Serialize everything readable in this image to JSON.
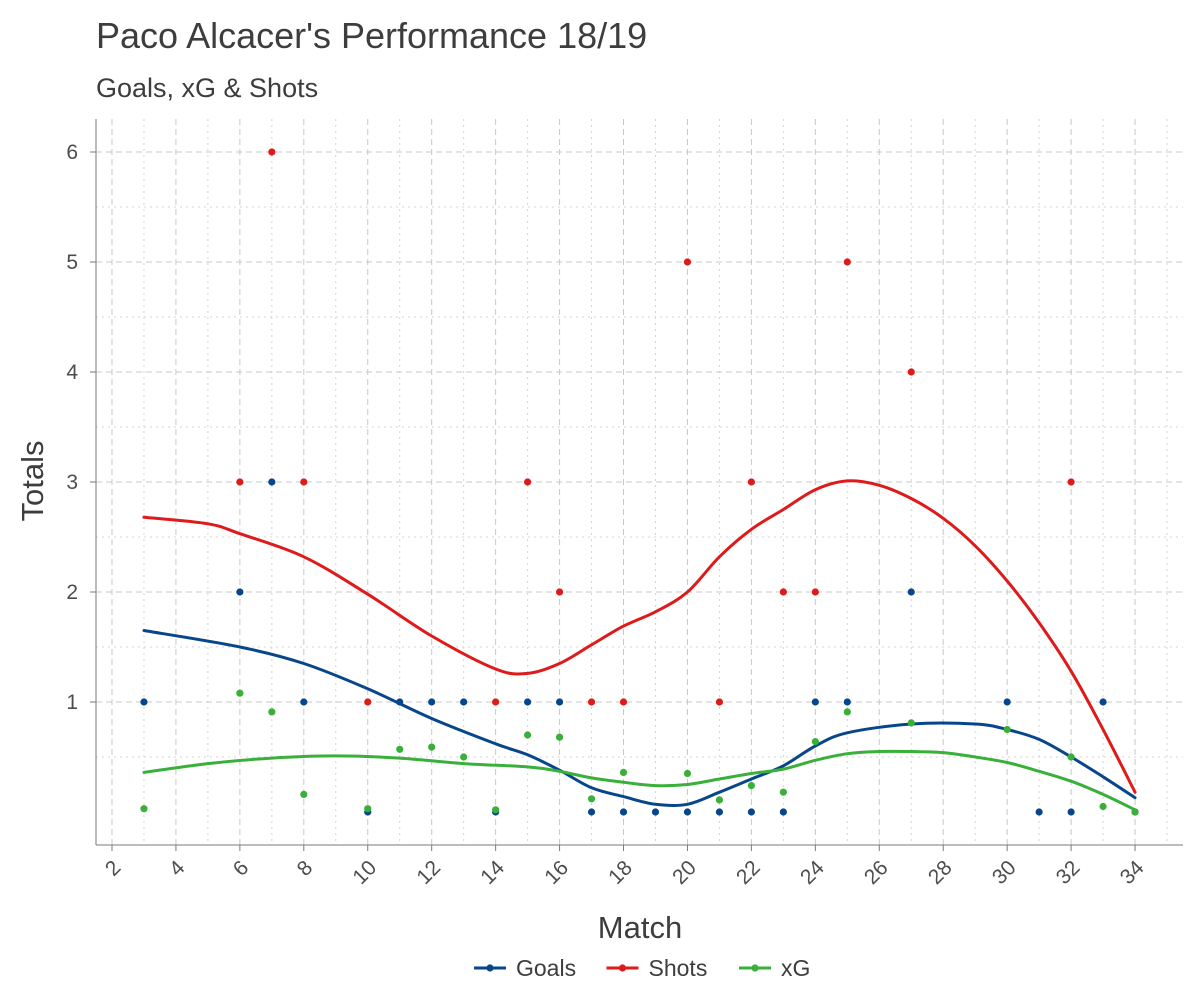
{
  "chart_data": {
    "type": "scatter",
    "title": "Paco Alcacer's Performance 18/19",
    "subtitle": "Goals, xG & Shots",
    "xlabel": "Match",
    "ylabel": "Totals",
    "xlim": [
      1.5,
      35.5
    ],
    "ylim": [
      -0.3,
      6.3
    ],
    "x_ticks": [
      2,
      4,
      6,
      8,
      10,
      12,
      14,
      16,
      18,
      20,
      22,
      24,
      26,
      28,
      30,
      32,
      34
    ],
    "x_tick_labels": [
      "2",
      "4",
      "6",
      "8",
      "10",
      "12",
      "14",
      "16",
      "18",
      "20",
      "22",
      "24",
      "26",
      "28",
      "30",
      "32",
      "34"
    ],
    "y_ticks": [
      1,
      2,
      3,
      4,
      5,
      6
    ],
    "y_tick_labels": [
      "1",
      "2",
      "3",
      "4",
      "5",
      "6"
    ],
    "grid": true,
    "legend_position": "bottom",
    "series": [
      {
        "name": "Goals",
        "color": "#08468b",
        "points": [
          [
            3,
            1
          ],
          [
            6,
            2
          ],
          [
            7,
            3
          ],
          [
            8,
            1
          ],
          [
            10,
            0
          ],
          [
            11,
            1
          ],
          [
            12,
            1
          ],
          [
            13,
            1
          ],
          [
            14,
            0
          ],
          [
            15,
            1
          ],
          [
            16,
            1
          ],
          [
            17,
            0
          ],
          [
            18,
            0
          ],
          [
            19,
            0
          ],
          [
            20,
            0
          ],
          [
            21,
            0
          ],
          [
            22,
            0
          ],
          [
            23,
            0
          ],
          [
            24,
            1
          ],
          [
            25,
            1
          ],
          [
            27,
            2
          ],
          [
            30,
            1
          ],
          [
            31,
            0
          ],
          [
            32,
            0
          ],
          [
            33,
            1
          ],
          [
            34,
            0
          ]
        ],
        "smooth": [
          [
            3,
            1.65
          ],
          [
            6,
            1.5
          ],
          [
            8,
            1.35
          ],
          [
            10,
            1.12
          ],
          [
            12,
            0.85
          ],
          [
            14,
            0.62
          ],
          [
            15,
            0.52
          ],
          [
            16,
            0.38
          ],
          [
            17,
            0.22
          ],
          [
            18,
            0.14
          ],
          [
            19,
            0.07
          ],
          [
            20,
            0.07
          ],
          [
            21,
            0.18
          ],
          [
            22,
            0.3
          ],
          [
            23,
            0.42
          ],
          [
            24,
            0.6
          ],
          [
            25,
            0.72
          ],
          [
            27,
            0.8
          ],
          [
            29,
            0.8
          ],
          [
            30,
            0.75
          ],
          [
            31,
            0.66
          ],
          [
            32,
            0.5
          ],
          [
            33,
            0.32
          ],
          [
            34,
            0.13
          ]
        ]
      },
      {
        "name": "Shots",
        "color": "#de1a1a",
        "points": [
          [
            6,
            3
          ],
          [
            7,
            6
          ],
          [
            8,
            3
          ],
          [
            10,
            1
          ],
          [
            14,
            1
          ],
          [
            15,
            3
          ],
          [
            16,
            2
          ],
          [
            17,
            1
          ],
          [
            18,
            1
          ],
          [
            20,
            5
          ],
          [
            21,
            1
          ],
          [
            22,
            3
          ],
          [
            23,
            2
          ],
          [
            24,
            2
          ],
          [
            25,
            5
          ],
          [
            27,
            4
          ],
          [
            32,
            3
          ]
        ],
        "smooth": [
          [
            3,
            2.68
          ],
          [
            5,
            2.62
          ],
          [
            6,
            2.53
          ],
          [
            8,
            2.32
          ],
          [
            10,
            1.98
          ],
          [
            12,
            1.6
          ],
          [
            14,
            1.3
          ],
          [
            15,
            1.26
          ],
          [
            16,
            1.35
          ],
          [
            17,
            1.52
          ],
          [
            18,
            1.69
          ],
          [
            19,
            1.82
          ],
          [
            20,
            2.0
          ],
          [
            21,
            2.32
          ],
          [
            22,
            2.57
          ],
          [
            23,
            2.75
          ],
          [
            24,
            2.93
          ],
          [
            25,
            3.01
          ],
          [
            26,
            2.97
          ],
          [
            27,
            2.85
          ],
          [
            28,
            2.67
          ],
          [
            29,
            2.42
          ],
          [
            30,
            2.1
          ],
          [
            31,
            1.72
          ],
          [
            32,
            1.28
          ],
          [
            33,
            0.75
          ],
          [
            34,
            0.18
          ]
        ]
      },
      {
        "name": "xG",
        "color": "#3aaf3a",
        "points": [
          [
            3,
            0.03
          ],
          [
            6,
            1.08
          ],
          [
            7,
            0.91
          ],
          [
            8,
            0.16
          ],
          [
            10,
            0.03
          ],
          [
            11,
            0.57
          ],
          [
            12,
            0.59
          ],
          [
            13,
            0.5
          ],
          [
            14,
            0.02
          ],
          [
            15,
            0.7
          ],
          [
            16,
            0.68
          ],
          [
            17,
            0.12
          ],
          [
            18,
            0.36
          ],
          [
            20,
            0.35
          ],
          [
            21,
            0.11
          ],
          [
            22,
            0.24
          ],
          [
            23,
            0.18
          ],
          [
            24,
            0.64
          ],
          [
            25,
            0.91
          ],
          [
            27,
            0.81
          ],
          [
            30,
            0.75
          ],
          [
            32,
            0.5
          ],
          [
            33,
            0.05
          ],
          [
            34,
            0.0
          ]
        ],
        "smooth": [
          [
            3,
            0.36
          ],
          [
            5,
            0.44
          ],
          [
            7,
            0.49
          ],
          [
            9,
            0.51
          ],
          [
            11,
            0.49
          ],
          [
            13,
            0.44
          ],
          [
            15,
            0.41
          ],
          [
            16,
            0.37
          ],
          [
            17,
            0.31
          ],
          [
            18,
            0.27
          ],
          [
            19,
            0.24
          ],
          [
            20,
            0.25
          ],
          [
            21,
            0.3
          ],
          [
            22,
            0.35
          ],
          [
            23,
            0.39
          ],
          [
            24,
            0.47
          ],
          [
            25,
            0.53
          ],
          [
            26,
            0.55
          ],
          [
            27,
            0.55
          ],
          [
            28,
            0.54
          ],
          [
            29,
            0.5
          ],
          [
            30,
            0.45
          ],
          [
            31,
            0.37
          ],
          [
            32,
            0.28
          ],
          [
            33,
            0.16
          ],
          [
            34,
            0.02
          ]
        ]
      }
    ]
  }
}
